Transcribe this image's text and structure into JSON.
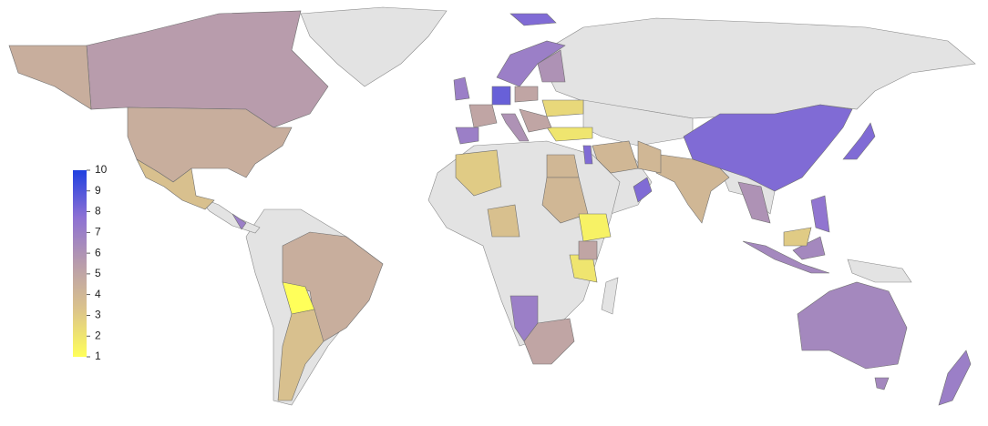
{
  "chart_data": {
    "type": "choropleth",
    "values": [
      5.5,
      4.5,
      3.5,
      4.5,
      1,
      3.5,
      6.5,
      7,
      8,
      8,
      4,
      4,
      4,
      8,
      2,
      3,
      4,
      4,
      3.5,
      1.5,
      2,
      7,
      5,
      5,
      7,
      5,
      8.5,
      7,
      7,
      6,
      6,
      5,
      2.5,
      5,
      6,
      6.5,
      7.5,
      3,
      7,
      8,
      8
    ],
    "no_data_color": "#e3e3e3",
    "colorbar": {
      "range": [
        1,
        10
      ],
      "ticks": [
        1,
        2,
        3,
        4,
        5,
        6,
        7,
        8,
        9,
        10
      ],
      "colors": [
        "#ffff5a",
        "#dcc48a",
        "#b89cac",
        "#8c70d4",
        "#2040e0"
      ]
    }
  }
}
